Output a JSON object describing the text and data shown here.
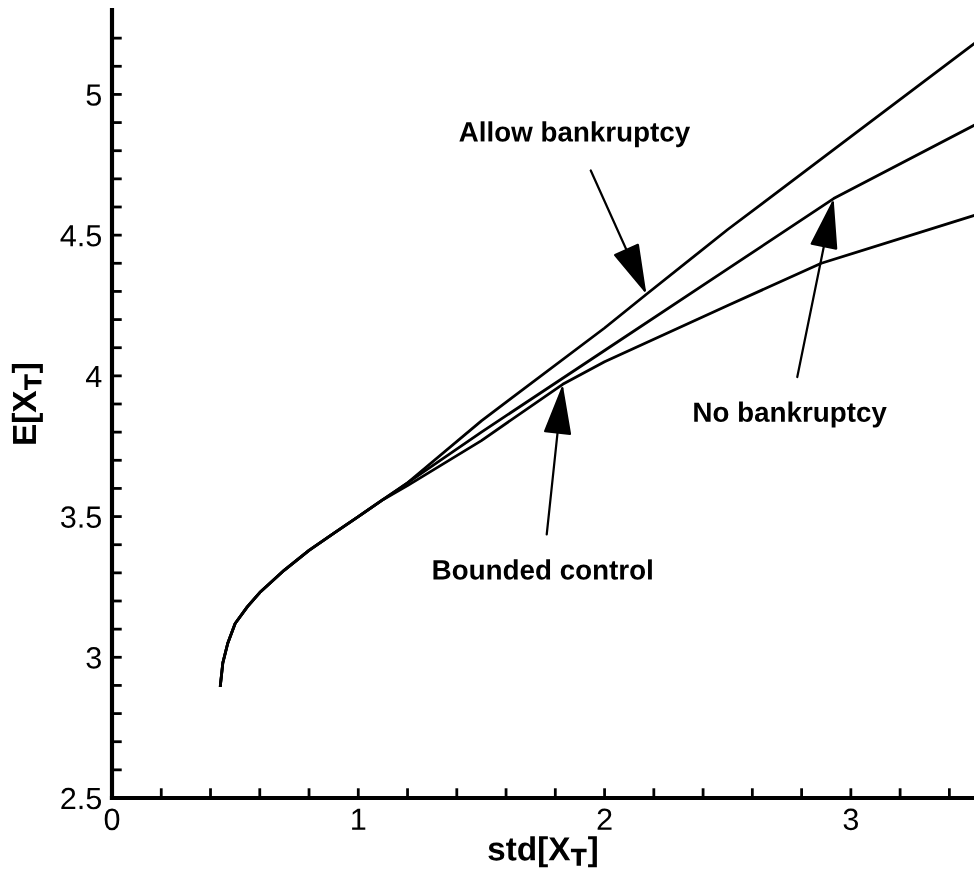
{
  "chart_data": {
    "type": "line",
    "xlabel": "std[X$_{T}$]",
    "ylabel": "E[X$_{T}$]",
    "xlim": [
      0,
      3.5
    ],
    "ylim": [
      2.5,
      5.3
    ],
    "xticks": [
      0,
      {
        "value": 0.2,
        "label": null
      },
      {
        "value": 0.4,
        "label": null
      },
      {
        "value": 0.6,
        "label": null
      },
      {
        "value": 0.8,
        "label": null
      },
      1,
      {
        "value": 1.2,
        "label": null
      },
      {
        "value": 1.4,
        "label": null
      },
      {
        "value": 1.6,
        "label": null
      },
      {
        "value": 1.8,
        "label": null
      },
      2,
      {
        "value": 2.2,
        "label": null
      },
      {
        "value": 2.4,
        "label": null
      },
      {
        "value": 2.6,
        "label": null
      },
      {
        "value": 2.8,
        "label": null
      },
      3,
      {
        "value": 3.2,
        "label": null
      },
      {
        "value": 3.4,
        "label": null
      }
    ],
    "yticks": [
      2.5,
      {
        "value": 2.6,
        "label": null
      },
      {
        "value": 2.7,
        "label": null
      },
      {
        "value": 2.8,
        "label": null
      },
      {
        "value": 2.9,
        "label": null
      },
      3,
      {
        "value": 3.1,
        "label": null
      },
      {
        "value": 3.2,
        "label": null
      },
      {
        "value": 3.3,
        "label": null
      },
      {
        "value": 3.4,
        "label": null
      },
      3.5,
      {
        "value": 3.6,
        "label": null
      },
      {
        "value": 3.7,
        "label": null
      },
      {
        "value": 3.8,
        "label": null
      },
      {
        "value": 3.9,
        "label": null
      },
      4,
      {
        "value": 4.1,
        "label": null
      },
      {
        "value": 4.2,
        "label": null
      },
      {
        "value": 4.3,
        "label": null
      },
      {
        "value": 4.4,
        "label": null
      },
      4.5,
      {
        "value": 4.6,
        "label": null
      },
      {
        "value": 4.7,
        "label": null
      },
      {
        "value": 4.8,
        "label": null
      },
      {
        "value": 4.9,
        "label": null
      },
      5,
      {
        "value": 5.1,
        "label": null
      },
      {
        "value": 5.2,
        "label": null
      }
    ],
    "marker": "none",
    "line_style": "solid",
    "series": [
      {
        "color": "#000000",
        "x": [
          0.44,
          0.45,
          0.47,
          0.5,
          0.55,
          0.6,
          0.7,
          0.8,
          0.9,
          1.0,
          1.1,
          1.2,
          1.5,
          2.0,
          2.17,
          2.5,
          3.0,
          3.5
        ],
        "values": [
          2.9,
          2.98,
          3.05,
          3.12,
          3.18,
          3.23,
          3.31,
          3.38,
          3.44,
          3.5,
          3.56,
          3.62,
          3.84,
          4.17,
          4.29,
          4.52,
          4.85,
          5.18
        ]
      },
      {
        "color": "#000000",
        "x": [
          0.44,
          0.45,
          0.47,
          0.5,
          0.55,
          0.6,
          0.7,
          0.8,
          0.9,
          1.0,
          1.1,
          1.2,
          1.5,
          2.0,
          2.5,
          2.93,
          3.5
        ],
        "values": [
          2.9,
          2.98,
          3.05,
          3.12,
          3.18,
          3.23,
          3.31,
          3.38,
          3.44,
          3.5,
          3.56,
          3.62,
          3.8,
          4.09,
          4.38,
          4.63,
          4.89
        ]
      },
      {
        "color": "#000000",
        "x": [
          0.44,
          0.45,
          0.47,
          0.5,
          0.55,
          0.6,
          0.7,
          0.8,
          0.9,
          1.0,
          1.1,
          1.2,
          1.5,
          1.83,
          2.0,
          2.5,
          2.88,
          3.5
        ],
        "values": [
          2.9,
          2.98,
          3.05,
          3.12,
          3.18,
          3.23,
          3.31,
          3.38,
          3.44,
          3.5,
          3.56,
          3.61,
          3.77,
          3.97,
          4.05,
          4.25,
          4.4,
          4.57
        ]
      }
    ],
    "annotations": [
      {
        "text": "Allow bankruptcy",
        "x": 2.17,
        "y": 4.29
      },
      {
        "text": "No bankruptcy",
        "x": 2.93,
        "y": 4.63
      },
      {
        "text": "Bounded control",
        "x": 1.83,
        "y": 3.97
      }
    ]
  }
}
